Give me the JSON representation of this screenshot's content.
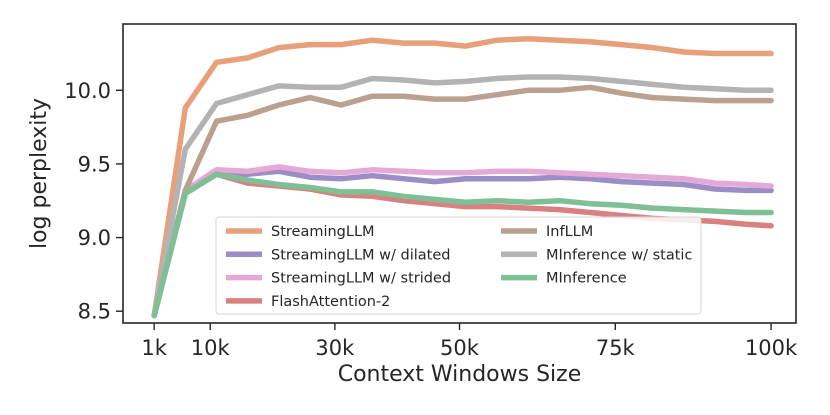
{
  "chart_data": {
    "type": "line",
    "title": "",
    "xlabel": "Context Windows Size",
    "ylabel": "log perplexity",
    "xlim": [
      -4000,
      104000
    ],
    "ylim": [
      8.42,
      10.45
    ],
    "x_ticks": [
      {
        "value": 1000,
        "label": "1k"
      },
      {
        "value": 10000,
        "label": "10k"
      },
      {
        "value": 30000,
        "label": "30k"
      },
      {
        "value": 50000,
        "label": "50k"
      },
      {
        "value": 75000,
        "label": "75k"
      },
      {
        "value": 100000,
        "label": "100k"
      }
    ],
    "y_ticks": [
      {
        "value": 8.5,
        "label": "8.5"
      },
      {
        "value": 9.0,
        "label": "9.0"
      },
      {
        "value": 9.5,
        "label": "9.5"
      },
      {
        "value": 10.0,
        "label": "10.0"
      }
    ],
    "grid": false,
    "legend_position": "lower-right",
    "x": [
      1000,
      6000,
      11000,
      16000,
      21000,
      26000,
      31000,
      36000,
      41000,
      46000,
      51000,
      56000,
      61000,
      66000,
      71000,
      76000,
      81000,
      86000,
      91000,
      96000,
      100000
    ],
    "series": [
      {
        "name": "StreamingLLM",
        "color": "#e8a07a",
        "values": [
          8.47,
          9.88,
          10.19,
          10.22,
          10.29,
          10.31,
          10.31,
          10.34,
          10.32,
          10.32,
          10.3,
          10.34,
          10.35,
          10.34,
          10.33,
          10.31,
          10.29,
          10.26,
          10.25,
          10.25,
          10.25
        ]
      },
      {
        "name": "StreamingLLM w/ dilated",
        "color": "#9b8dc6",
        "values": [
          8.47,
          9.3,
          9.43,
          9.43,
          9.45,
          9.41,
          9.4,
          9.42,
          9.4,
          9.38,
          9.4,
          9.4,
          9.4,
          9.41,
          9.4,
          9.38,
          9.37,
          9.36,
          9.33,
          9.32,
          9.32
        ]
      },
      {
        "name": "StreamingLLM w/ strided",
        "color": "#e5a9d8",
        "values": [
          8.47,
          9.32,
          9.46,
          9.45,
          9.48,
          9.45,
          9.44,
          9.46,
          9.45,
          9.44,
          9.44,
          9.45,
          9.45,
          9.44,
          9.43,
          9.42,
          9.41,
          9.4,
          9.37,
          9.36,
          9.35
        ]
      },
      {
        "name": "FlashAttention-2",
        "color": "#d98080",
        "values": [
          8.47,
          9.3,
          9.43,
          9.37,
          9.35,
          9.33,
          9.29,
          9.28,
          9.25,
          9.23,
          9.21,
          9.21,
          9.2,
          9.19,
          9.17,
          9.15,
          9.13,
          9.12,
          9.11,
          9.09,
          9.08
        ]
      },
      {
        "name": "InfLLM",
        "color": "#bca08f",
        "values": [
          8.47,
          9.32,
          9.79,
          9.83,
          9.9,
          9.95,
          9.9,
          9.96,
          9.96,
          9.94,
          9.94,
          9.97,
          10.0,
          10.0,
          10.02,
          9.98,
          9.95,
          9.94,
          9.93,
          9.93,
          9.93
        ]
      },
      {
        "name": "MInference w/ static",
        "color": "#b3b3b3",
        "values": [
          8.47,
          9.6,
          9.91,
          9.97,
          10.03,
          10.02,
          10.02,
          10.08,
          10.07,
          10.05,
          10.06,
          10.08,
          10.09,
          10.09,
          10.08,
          10.06,
          10.04,
          10.02,
          10.01,
          10.0,
          10.0
        ]
      },
      {
        "name": "MInference",
        "color": "#7fbf95",
        "values": [
          8.47,
          9.3,
          9.43,
          9.39,
          9.36,
          9.34,
          9.31,
          9.31,
          9.28,
          9.26,
          9.24,
          9.25,
          9.24,
          9.25,
          9.23,
          9.22,
          9.2,
          9.19,
          9.18,
          9.17,
          9.17
        ]
      }
    ],
    "legend_order": [
      0,
      4,
      1,
      5,
      2,
      6,
      3
    ]
  }
}
